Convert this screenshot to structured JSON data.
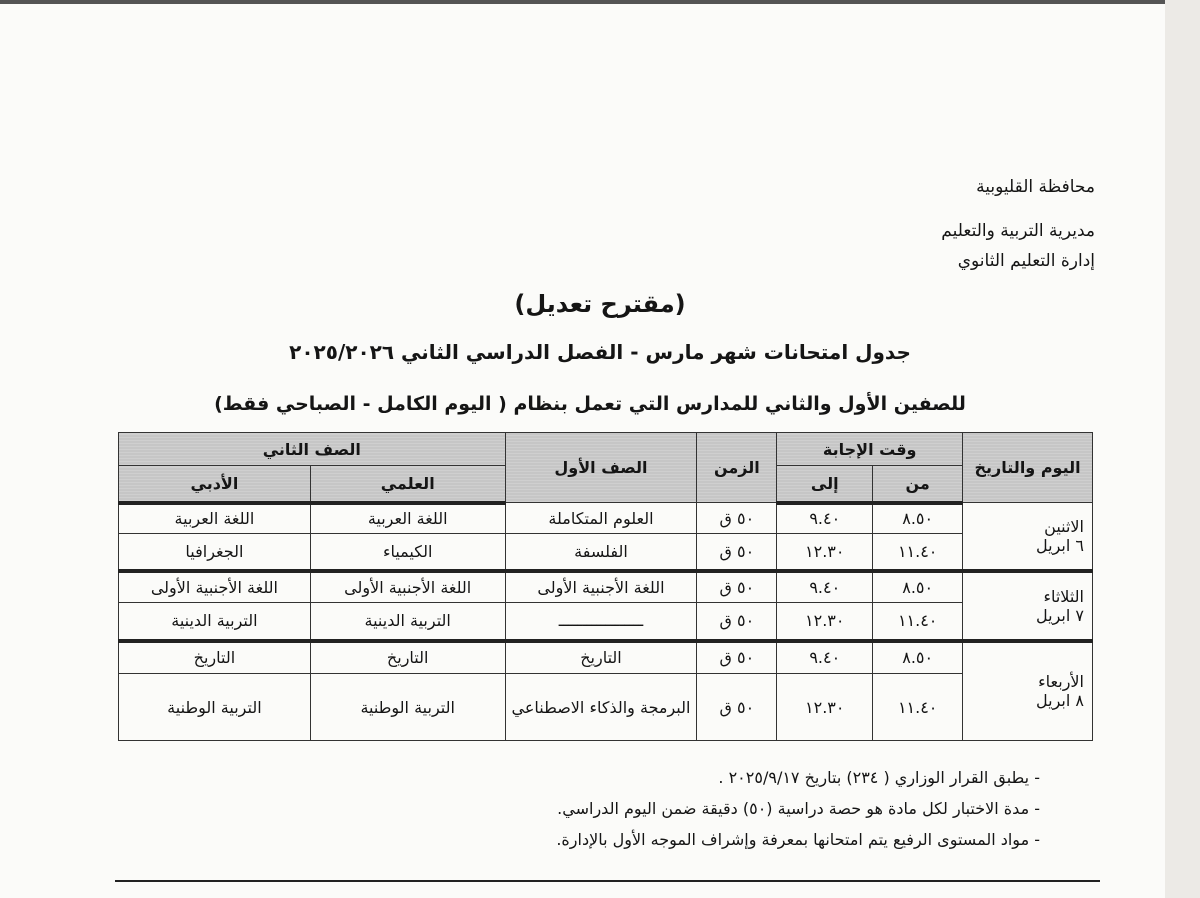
{
  "header": {
    "lines": [
      "محافظة القليوبية",
      "مديرية التربية والتعليم",
      "إدارة التعليم الثانوي"
    ]
  },
  "title": "(مقترح تعديل)",
  "subtitle": "جدول امتحانات شهر  مارس - الفصل الدراسي الثاني ٢٠٢٥/٢٠٢٦",
  "subtitle2": "للصفين الأول والثاني للمدارس التي تعمل بنظام ( اليوم الكامل - الصباحي فقط)",
  "table": {
    "headers": {
      "day": "اليوم والتاريخ",
      "answer_time": "وقت الإجابة",
      "from": "من",
      "to": "إلى",
      "duration": "الزمن",
      "grade1": "الصف الأول",
      "grade2": "الصف الثاني",
      "science": "العلمي",
      "literary": "الأدبي"
    },
    "days": [
      {
        "day": "الاثنين",
        "date": "٦ ابريل",
        "rows": [
          {
            "from": "٨.٥٠",
            "to": "٩.٤٠",
            "duration": "٥٠ ق",
            "grade1": "العلوم المتكاملة",
            "science": "اللغة العربية",
            "literary": "اللغة العربية"
          },
          {
            "from": "١١.٤٠",
            "to": "١٢.٣٠",
            "duration": "٥٠ ق",
            "grade1": "الفلسفة",
            "science": "الكيمياء",
            "literary": "الجغرافيا"
          }
        ]
      },
      {
        "day": "الثلاثاء",
        "date": "٧ ابريل",
        "rows": [
          {
            "from": "٨.٥٠",
            "to": "٩.٤٠",
            "duration": "٥٠ ق",
            "grade1": "اللغة الأجنبية الأولى",
            "science": "اللغة الأجنبية الأولى",
            "literary": "اللغة الأجنبية الأولى"
          },
          {
            "from": "١١.٤٠",
            "to": "١٢.٣٠",
            "duration": "٥٠ ق",
            "grade1": "ــــــــــــــــــ",
            "science": "التربية الدينية",
            "literary": "التربية الدينية"
          }
        ]
      },
      {
        "day": "الأربعاء",
        "date": "٨ ابريل",
        "rows": [
          {
            "from": "٨.٥٠",
            "to": "٩.٤٠",
            "duration": "٥٠ ق",
            "grade1": "التاريخ",
            "science": "التاريخ",
            "literary": "التاريخ"
          },
          {
            "from": "١١.٤٠",
            "to": "١٢.٣٠",
            "duration": "٥٠ ق",
            "grade1": "البرمجة والذكاء الاصطناعي",
            "science": "التربية الوطنية",
            "literary": "التربية الوطنية"
          }
        ]
      }
    ]
  },
  "notes": [
    "-  يطبق القرار الوزاري  ( ٢٣٤) بتاريخ ٢٠٢٥/٩/١٧ .",
    "-  مدة الاختبار لكل مادة هو حصة دراسية (٥٠) دقيقة ضمن اليوم الدراسي.",
    "-  مواد المستوى الرفيع يتم امتحانها بمعرفة وإشراف الموجه الأول بالإدارة."
  ]
}
